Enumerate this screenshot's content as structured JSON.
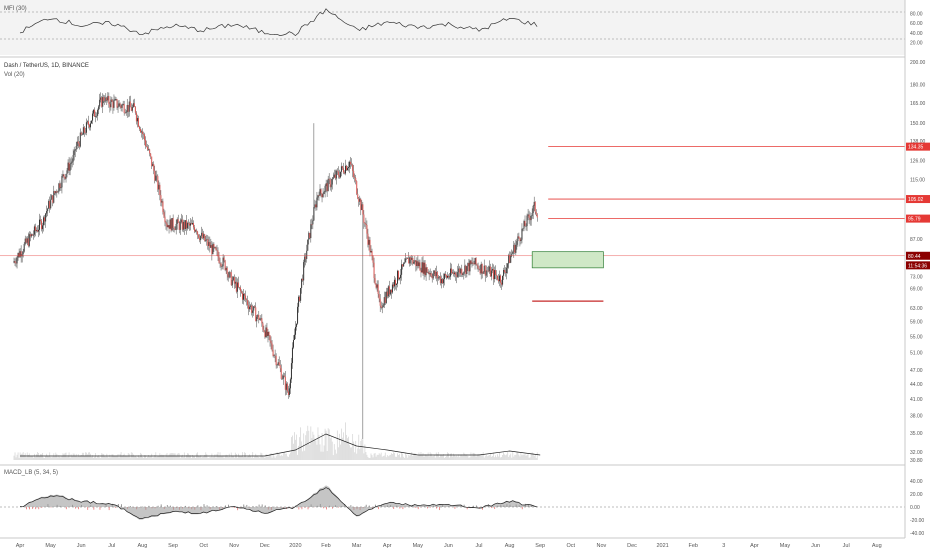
{
  "colors": {
    "up": "#26a69a",
    "down": "#ef5350",
    "candle_body_up": "#333333",
    "candle_body_down": "#d9534f",
    "line": "#2a2a2a",
    "hline_red": "#e53935",
    "hline_dark": "#c62828",
    "zone_fill": "#cfe8c6",
    "zone_stroke": "#2e7d32",
    "grid": "#eeeeee",
    "pane_border": "#c8c8c8",
    "axis_text": "#555555",
    "price_tag_red": "#e53935",
    "price_tag_dark": "#8b0000",
    "mfi_band": "#f0f0f0",
    "volume_bar": "#d8d8d8",
    "macd_hist_pos": "#7f7f7f",
    "macd_hist_neg": "#e57373"
  },
  "mfi": {
    "label": "MFI (30)",
    "axis_labels": [
      "80.00",
      "60.00",
      "40.00",
      "20.00"
    ]
  },
  "main": {
    "title": "Dash / TetherUS, 1D, BINANCE",
    "vol_label": "Vol (20)",
    "axis_labels": [
      "200.00",
      "180.00",
      "165.00",
      "150.00",
      "138.00",
      "126.00",
      "115.00",
      "104.00",
      "95.00",
      "87.00",
      "80.00",
      "73.00",
      "69.00",
      "63.00",
      "59.00",
      "55.00",
      "51.00",
      "47.00",
      "44.00",
      "41.00",
      "38.00",
      "35.00",
      "32.00",
      "30.80"
    ],
    "price_tags": [
      {
        "text": "134.35",
        "value": 134.35,
        "style": "red"
      },
      {
        "text": "105.02",
        "value": 105.02,
        "style": "red"
      },
      {
        "text": "95.79",
        "value": 95.79,
        "style": "red"
      },
      {
        "text": "80.44",
        "value": 80.44,
        "style": "dark"
      },
      {
        "text": "11:54:36",
        "value": 76.9,
        "style": "dark"
      }
    ]
  },
  "macd": {
    "label": "MACD_LB (5, 34, 5)",
    "axis_labels": [
      "40.00",
      "20.00",
      "0.00",
      "-20.00",
      "-40.00"
    ]
  },
  "time_axis": [
    "Apr",
    "May",
    "Jun",
    "Jul",
    "Aug",
    "Sep",
    "Oct",
    "Nov",
    "Dec",
    "2020",
    "Feb",
    "Mar",
    "Apr",
    "May",
    "Jun",
    "Jul",
    "Aug",
    "Sep",
    "Oct",
    "Nov",
    "Dec",
    "2021",
    "Feb",
    "3",
    "Apr",
    "May",
    "Jun",
    "Jul",
    "Aug"
  ],
  "chart_data": [
    {
      "type": "line",
      "title": "MFI (30)",
      "ylim": [
        0,
        100
      ],
      "x": [
        "2019-04",
        "2019-05",
        "2019-06",
        "2019-07",
        "2019-08",
        "2019-09",
        "2019-10",
        "2019-11",
        "2019-12",
        "2020-01",
        "2020-02",
        "2020-03",
        "2020-04",
        "2020-05",
        "2020-06",
        "2020-07",
        "2020-08",
        "2020-09"
      ],
      "values": [
        42,
        72,
        55,
        60,
        38,
        55,
        45,
        58,
        40,
        38,
        88,
        45,
        62,
        52,
        58,
        45,
        70,
        55
      ]
    },
    {
      "type": "candlestick",
      "title": "Dash / TetherUS, 1D, BINANCE",
      "ylim": [
        30.8,
        200
      ],
      "x": [
        "2019-04",
        "2019-05",
        "2019-06",
        "2019-07",
        "2019-08",
        "2019-09",
        "2019-10",
        "2019-11",
        "2019-12",
        "2020-01",
        "2020-02",
        "2020-03",
        "2020-04",
        "2020-05",
        "2020-06",
        "2020-07",
        "2020-08",
        "2020-09"
      ],
      "close": [
        95,
        128,
        170,
        160,
        95,
        92,
        76,
        60,
        42,
        110,
        125,
        62,
        80,
        72,
        77,
        72,
        100,
        80.44
      ],
      "hlines": [
        {
          "value": 134.35,
          "style": "red"
        },
        {
          "value": 105.02,
          "style": "red"
        },
        {
          "value": 95.79,
          "style": "red"
        },
        {
          "value": 80.44,
          "style": "red-thin"
        },
        {
          "value": 65,
          "style": "dark",
          "start_month": "2020-09",
          "end_month": "2020-11"
        }
      ],
      "zone": {
        "from": "2020-09",
        "to": "2020-11",
        "top": 82,
        "bottom": 76
      }
    },
    {
      "type": "bar",
      "title": "Vol (20)",
      "note": "volume under price pane"
    },
    {
      "type": "area",
      "title": "MACD_LB (5, 34, 5)",
      "ylim": [
        -40,
        40
      ],
      "x": [
        "2019-04",
        "2019-05",
        "2019-06",
        "2019-07",
        "2019-08",
        "2019-09",
        "2019-10",
        "2019-11",
        "2019-12",
        "2020-01",
        "2020-02",
        "2020-03",
        "2020-04",
        "2020-05",
        "2020-06",
        "2020-07",
        "2020-08",
        "2020-09"
      ],
      "values": [
        0,
        20,
        10,
        5,
        -20,
        -8,
        -10,
        0,
        -10,
        0,
        35,
        -15,
        8,
        2,
        4,
        -2,
        10,
        -2
      ]
    }
  ]
}
